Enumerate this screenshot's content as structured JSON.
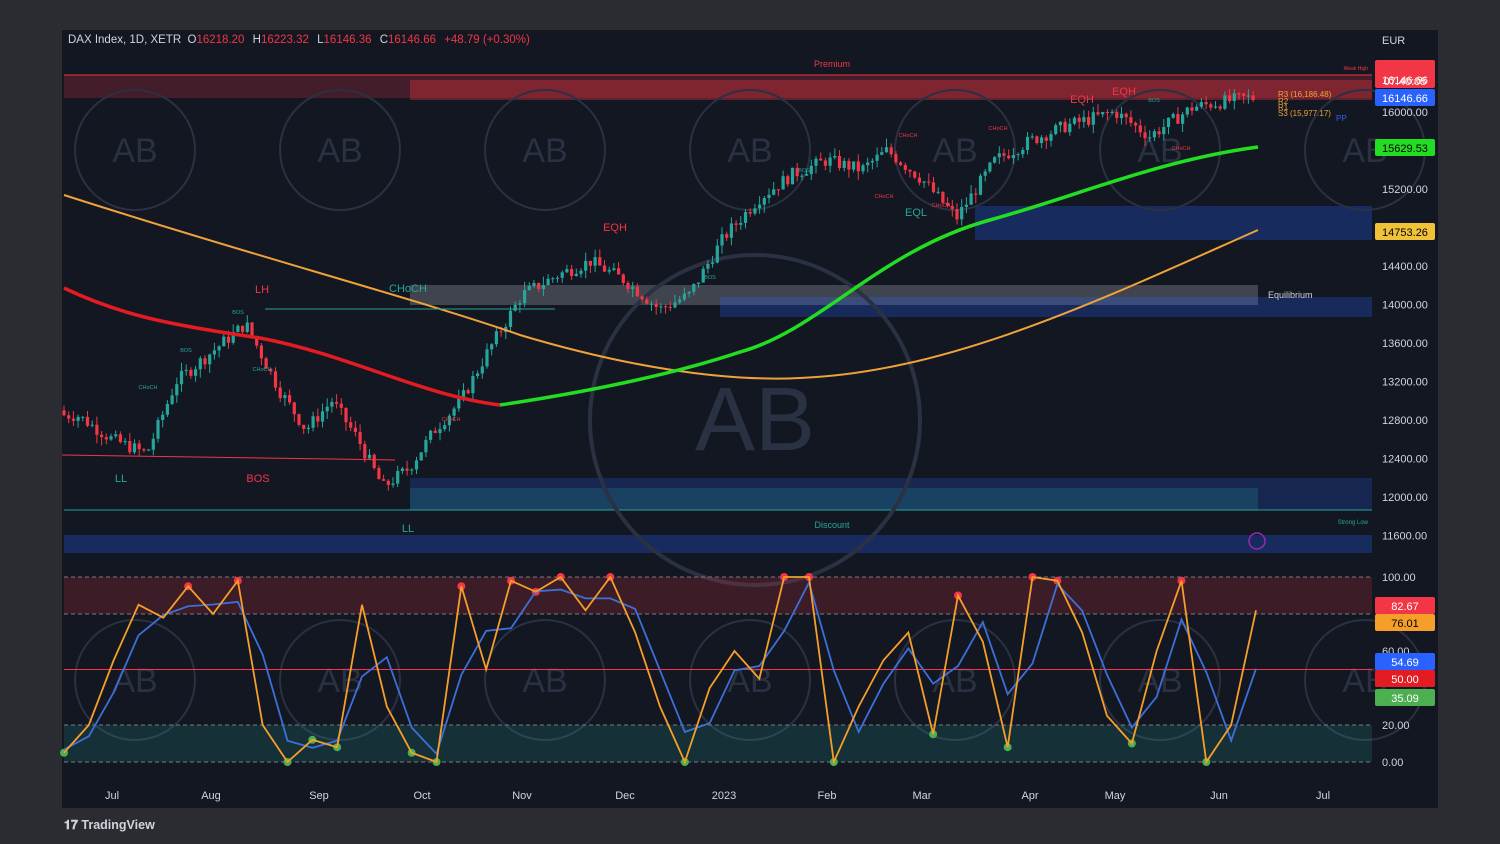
{
  "symbol_line": "DAX Index, 1D, XETR",
  "ohlc": {
    "o_label": "O",
    "o": "16218.20",
    "h_label": "H",
    "h": "16223.32",
    "l_label": "L",
    "l": "16146.36",
    "c_label": "C",
    "c": "16146.66",
    "chg": "+48.79 (+0.30%)"
  },
  "currency": "EUR",
  "brand": "TradingView",
  "price_axis": {
    "ticks": [
      "16000.00",
      "15200.00",
      "14400.00",
      "14000.00",
      "13600.00",
      "13200.00",
      "12800.00",
      "12400.00",
      "12000.00",
      "11600.00"
    ],
    "ylim": [
      11400,
      16700
    ]
  },
  "price_badges": {
    "last": "16146.66",
    "countdown": "07:40:05",
    "last2": "16146.66",
    "ma_fast": "15629.53",
    "ma_slow": "14753.26"
  },
  "osc_axis": {
    "ticks": [
      "100.00",
      "60.00",
      "20.00",
      "0.00"
    ],
    "ylim": [
      0,
      100
    ]
  },
  "osc_badges": {
    "k": "82.67",
    "d": "76.01",
    "v1": "54.69",
    "v2": "50.00",
    "v3": "35.09"
  },
  "x_axis": [
    "Jul",
    "Aug",
    "Sep",
    "Oct",
    "Nov",
    "Dec",
    "2023",
    "Feb",
    "Mar",
    "Apr",
    "May",
    "Jun",
    "Jul"
  ],
  "zones": {
    "premium": "Premium",
    "discount": "Discount",
    "equilibrium": "Equilibrium",
    "weak_high": "Weak High",
    "strong_low": "Strong Low"
  },
  "structure_labels": [
    "LH",
    "LL",
    "BOS",
    "CHoCH",
    "EQH",
    "EQH",
    "EQH",
    "EQL",
    "LL"
  ],
  "small_labels": [
    "BOS",
    "BOS",
    "BOS",
    "BOS",
    "BOS",
    "CHoCH",
    "CHoCH",
    "CHoCH",
    "CHoCH",
    "CHoCH",
    "CHoCH",
    "CHoCH",
    "CHoCH"
  ],
  "pivot_labels": [
    "R3 (16,186.48)",
    "R2",
    "R1",
    "S3 (15,977.17)",
    "PP"
  ],
  "watermark": "AB",
  "colors": {
    "bull": "#26a69a",
    "bear": "#f23645",
    "ma_fast": "#22dd22",
    "ma_red": "#e31b23",
    "ma_orange": "#f0a23a",
    "osc_k": "#f59f2a",
    "osc_d": "#3d6fd9"
  },
  "chart_data": {
    "type": "candlestick",
    "title": "DAX Index, 1D, XETR",
    "x_ticks": [
      "Jul",
      "Aug",
      "Sep",
      "Oct",
      "Nov",
      "Dec",
      "2023",
      "Feb",
      "Mar",
      "Apr",
      "May",
      "Jun",
      "Jul"
    ],
    "ylim": [
      11400,
      16700
    ],
    "close_path": [
      [
        "Jul",
        12850
      ],
      [
        "Jul",
        12600
      ],
      [
        "Jul",
        12450
      ],
      [
        "Aug",
        13200
      ],
      [
        "Aug",
        13500
      ],
      [
        "Aug",
        13800
      ],
      [
        "Sep",
        13100
      ],
      [
        "Sep",
        12700
      ],
      [
        "Sep",
        13000
      ],
      [
        "Sep",
        12600
      ],
      [
        "Oct",
        12100
      ],
      [
        "Oct",
        12300
      ],
      [
        "Oct",
        12700
      ],
      [
        "Oct",
        13000
      ],
      [
        "Nov",
        13500
      ],
      [
        "Nov",
        14100
      ],
      [
        "Nov",
        14300
      ],
      [
        "Dec",
        14450
      ],
      [
        "Dec",
        14250
      ],
      [
        "Dec",
        13950
      ],
      [
        "2023",
        14100
      ],
      [
        "2023",
        14700
      ],
      [
        "2023",
        15100
      ],
      [
        "Feb",
        15350
      ],
      [
        "Feb",
        15500
      ],
      [
        "Feb",
        15400
      ],
      [
        "Mar",
        15600
      ],
      [
        "Mar",
        15300
      ],
      [
        "Mar",
        14900
      ],
      [
        "Apr",
        15500
      ],
      [
        "Apr",
        15700
      ],
      [
        "Apr",
        15850
      ],
      [
        "May",
        15900
      ],
      [
        "May",
        16000
      ],
      [
        "May",
        15750
      ],
      [
        "Jun",
        16050
      ],
      [
        "Jun",
        16146
      ]
    ],
    "series": [
      {
        "name": "",
        "color": "#22dd22",
        "values": [
          [
            13000,
            12950
          ],
          [
            14400,
            14200
          ],
          [
            15629,
            15629
          ]
        ]
      },
      {
        "name": "",
        "color": "#f0a23a",
        "values": [
          [
            15300,
            13500
          ],
          [
            13200,
            13200
          ],
          [
            14753,
            14753
          ]
        ]
      }
    ]
  }
}
